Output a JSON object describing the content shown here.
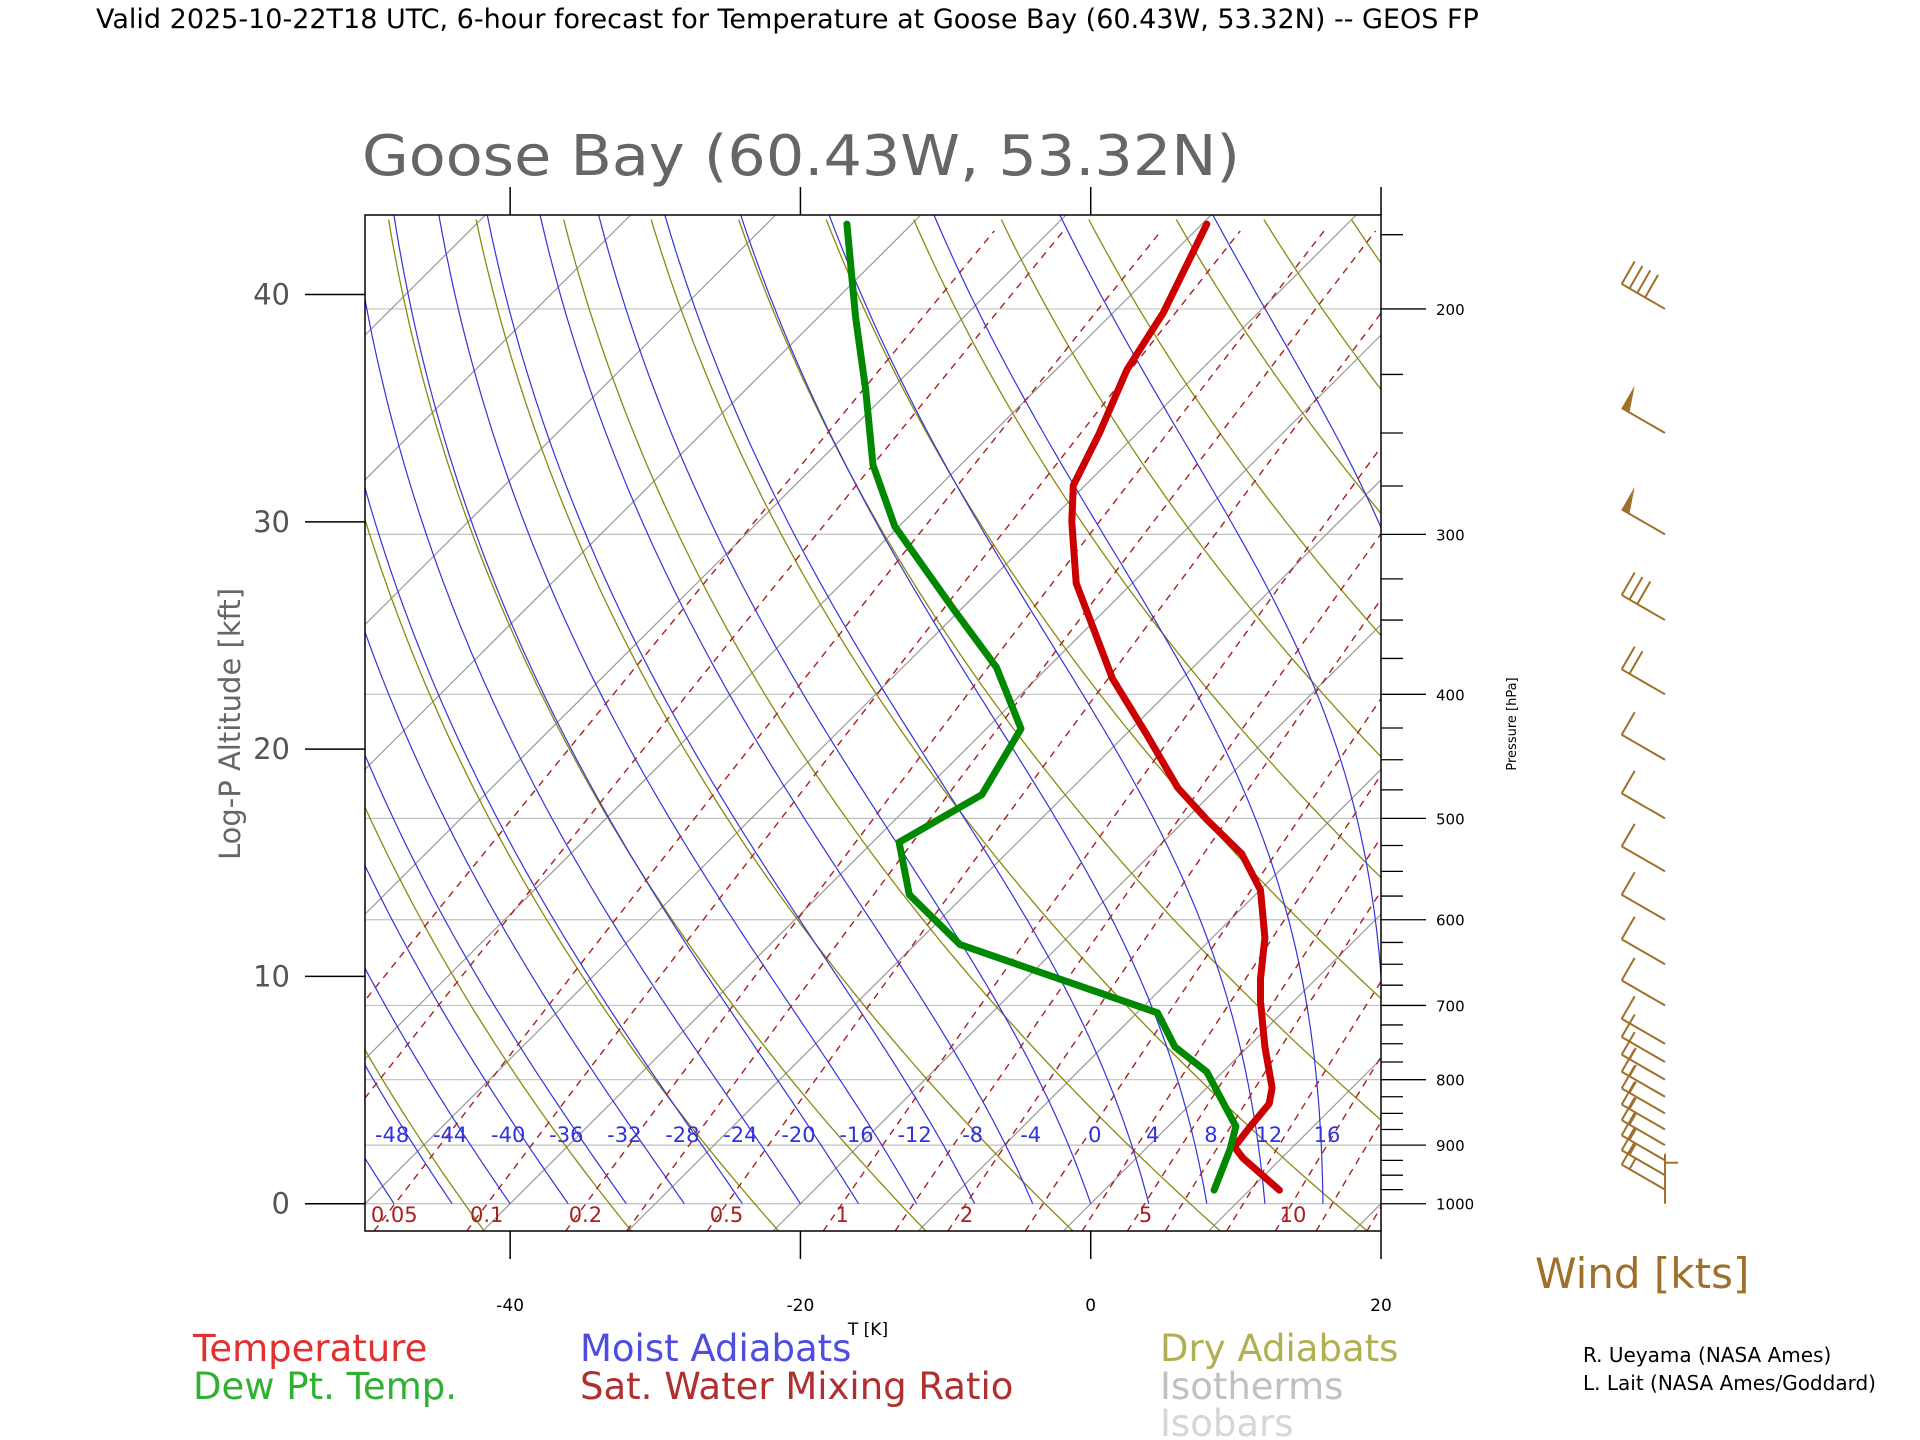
{
  "header": "Valid 2025-10-22T18 UTC, 6-hour forecast for Temperature at Goose Bay (60.43W, 53.32N) -- GEOS FP",
  "credits": [
    "R. Ueyama (NASA Ames)",
    "L. Lait (NASA Ames/Goddard)"
  ],
  "legend": {
    "temperature": "Temperature",
    "dewpoint": "Dew Pt. Temp.",
    "moist": "Moist Adiabats",
    "mixing": "Sat. Water Mixing Ratio",
    "dry": "Dry Adiabats",
    "isotherms": "Isotherms",
    "isobars": "Isobars"
  },
  "colors": {
    "temperature": "#cc0000",
    "dewpoint": "#008800",
    "moist": "#3333dd",
    "mixing": "#a82020",
    "dry": "#8a8a10",
    "isotherm": "#999999",
    "isobar": "#c0c0c0",
    "wind": "#a0702a"
  },
  "chart_data": {
    "type": "line",
    "title": "Goose Bay (60.43W, 53.32N)",
    "xlabel": "T [K]",
    "ylabel": "Log-P Altitude [kft]",
    "right_axis_label": "Pressure [hPa]",
    "wind_label": "Wind [kts]",
    "xlim": [
      -50,
      20
    ],
    "ylim": [
      -1.2,
      43.5
    ],
    "x_ticks": [
      -40,
      -20,
      0,
      20
    ],
    "y_ticks": [
      0,
      10,
      20,
      30,
      40
    ],
    "pressure_ticks": [
      1000,
      900,
      800,
      700,
      600,
      500,
      400,
      300,
      200
    ],
    "moist_adiabat_labels": [
      "-48",
      "-44",
      "-40",
      "-36",
      "-32",
      "-28",
      "-24",
      "-20",
      "-16",
      "-12",
      "-8",
      "-4",
      "0",
      "4",
      "8",
      "12",
      "16"
    ],
    "mixing_ratio_labels": [
      "0.05",
      "0.1",
      "0.2",
      "0.5",
      "1",
      "2",
      "5",
      "10"
    ],
    "mixing_ratio_values": [
      0.05,
      0.1,
      0.2,
      0.5,
      1,
      2,
      5,
      10
    ],
    "series": [
      {
        "name": "Temperature",
        "points": [
          [
            13.0,
            0.6
          ],
          [
            10.5,
            2.0
          ],
          [
            9.9,
            2.5
          ],
          [
            11.0,
            3.4
          ],
          [
            12.3,
            4.4
          ],
          [
            12.5,
            5.1
          ],
          [
            12.0,
            6.9
          ],
          [
            11.7,
            8.9
          ],
          [
            11.7,
            9.9
          ],
          [
            12.0,
            11.7
          ],
          [
            11.7,
            13.8
          ],
          [
            10.4,
            15.4
          ],
          [
            8.0,
            16.9
          ],
          [
            6.0,
            18.3
          ],
          [
            3.8,
            20.7
          ],
          [
            1.5,
            23.1
          ],
          [
            -1.0,
            27.3
          ],
          [
            -1.3,
            30.0
          ],
          [
            -1.2,
            31.6
          ],
          [
            0.6,
            33.9
          ],
          [
            2.5,
            36.7
          ],
          [
            5.0,
            39.2
          ],
          [
            8.0,
            43.1
          ]
        ]
      },
      {
        "name": "Dew Pt. Temp.",
        "points": [
          [
            8.5,
            0.6
          ],
          [
            9.6,
            2.4
          ],
          [
            10.0,
            3.4
          ],
          [
            9.5,
            4.0
          ],
          [
            8.0,
            5.8
          ],
          [
            5.8,
            6.9
          ],
          [
            4.6,
            8.4
          ],
          [
            -9.0,
            11.4
          ],
          [
            -12.5,
            13.6
          ],
          [
            -13.2,
            15.9
          ],
          [
            -7.5,
            18.0
          ],
          [
            -4.8,
            20.9
          ],
          [
            -6.5,
            23.6
          ],
          [
            -9.5,
            26.2
          ],
          [
            -13.5,
            29.8
          ],
          [
            -15.0,
            32.5
          ],
          [
            -15.5,
            35.8
          ],
          [
            -16.2,
            39.0
          ],
          [
            -16.8,
            43.1
          ]
        ]
      }
    ],
    "wind_barbs": [
      {
        "pressure_hpa": 1000,
        "speed_kt": 5,
        "direction_deg": 360
      },
      {
        "pressure_hpa": 975,
        "speed_kt": 15,
        "direction_deg": 300
      },
      {
        "pressure_hpa": 950,
        "speed_kt": 15,
        "direction_deg": 300
      },
      {
        "pressure_hpa": 925,
        "speed_kt": 15,
        "direction_deg": 300
      },
      {
        "pressure_hpa": 900,
        "speed_kt": 15,
        "direction_deg": 300
      },
      {
        "pressure_hpa": 875,
        "speed_kt": 15,
        "direction_deg": 300
      },
      {
        "pressure_hpa": 850,
        "speed_kt": 15,
        "direction_deg": 300
      },
      {
        "pressure_hpa": 825,
        "speed_kt": 15,
        "direction_deg": 300
      },
      {
        "pressure_hpa": 800,
        "speed_kt": 15,
        "direction_deg": 300
      },
      {
        "pressure_hpa": 775,
        "speed_kt": 10,
        "direction_deg": 300
      },
      {
        "pressure_hpa": 750,
        "speed_kt": 10,
        "direction_deg": 300
      },
      {
        "pressure_hpa": 700,
        "speed_kt": 10,
        "direction_deg": 300
      },
      {
        "pressure_hpa": 650,
        "speed_kt": 10,
        "direction_deg": 300
      },
      {
        "pressure_hpa": 600,
        "speed_kt": 10,
        "direction_deg": 300
      },
      {
        "pressure_hpa": 550,
        "speed_kt": 10,
        "direction_deg": 300
      },
      {
        "pressure_hpa": 500,
        "speed_kt": 10,
        "direction_deg": 300
      },
      {
        "pressure_hpa": 450,
        "speed_kt": 10,
        "direction_deg": 300
      },
      {
        "pressure_hpa": 400,
        "speed_kt": 20,
        "direction_deg": 300
      },
      {
        "pressure_hpa": 350,
        "speed_kt": 30,
        "direction_deg": 300
      },
      {
        "pressure_hpa": 300,
        "speed_kt": 50,
        "direction_deg": 300
      },
      {
        "pressure_hpa": 250,
        "speed_kt": 50,
        "direction_deg": 300
      },
      {
        "pressure_hpa": 200,
        "speed_kt": 40,
        "direction_deg": 300
      }
    ]
  }
}
